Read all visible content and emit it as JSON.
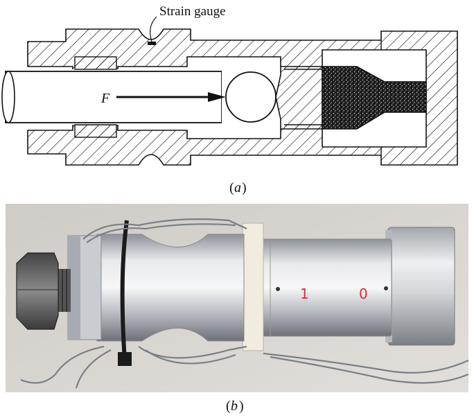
{
  "panel_a": {
    "caption_open": "(",
    "caption_letter": "a",
    "caption_close": ")",
    "strain_gauge_label": "Strain gauge",
    "force_label": "F"
  },
  "panel_b": {
    "caption_open": "(",
    "caption_letter": "b",
    "caption_close": ")",
    "marking_1": "1",
    "marking_2": "0"
  },
  "colors": {
    "line": "#111111",
    "metal_light": "#e6e7ea",
    "metal_mid": "#b9bcc2",
    "metal_dark": "#6f737a",
    "background_photo": "#d8d5d0",
    "marker_red": "#d2303a"
  }
}
